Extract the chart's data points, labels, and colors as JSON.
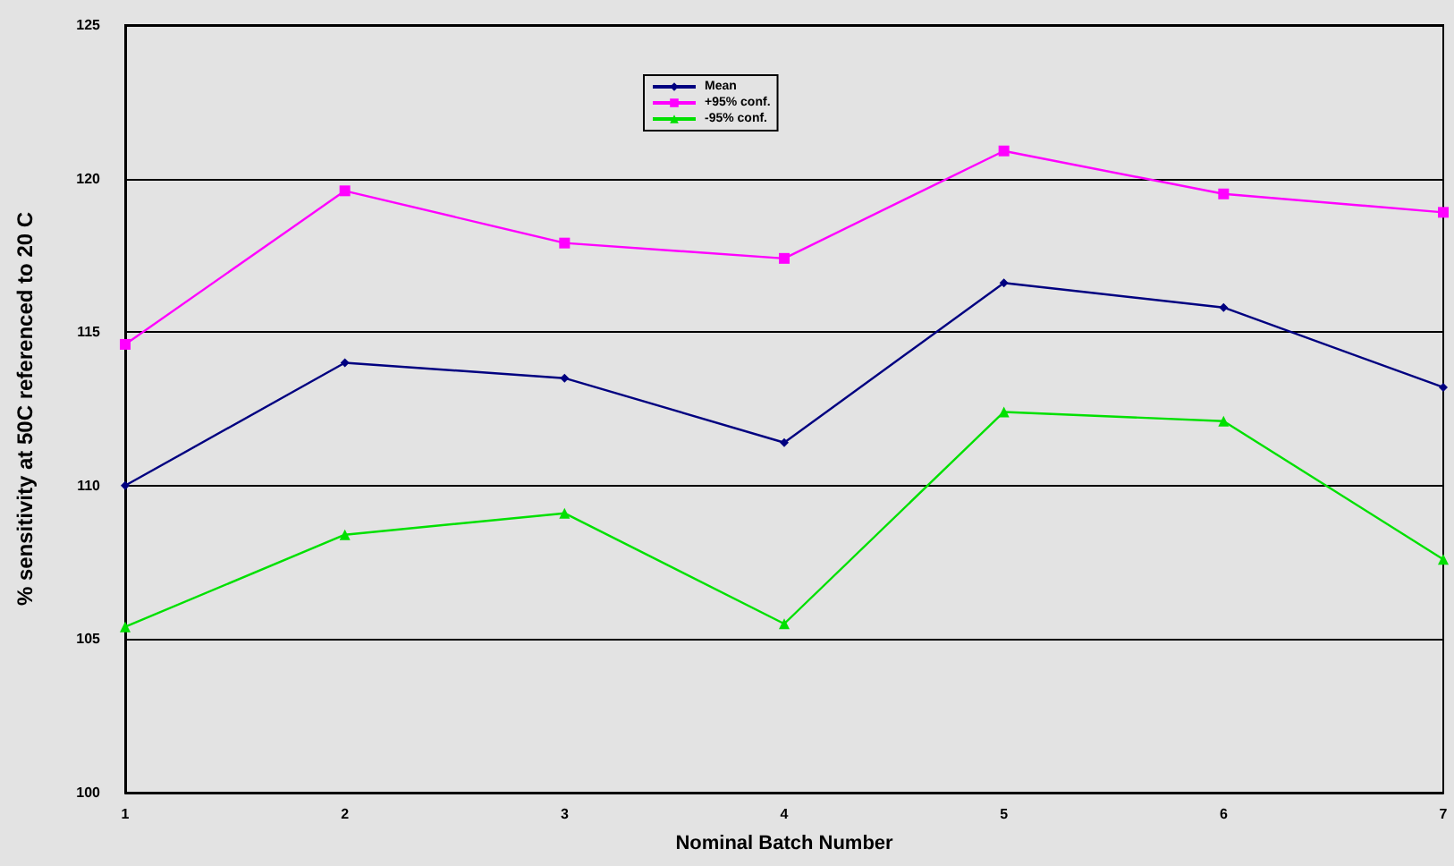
{
  "chart_data": {
    "type": "line",
    "xlabel": "Nominal Batch Number",
    "ylabel": "% sensitivity at 50C referenced to 20 C",
    "categories": [
      "1",
      "2",
      "3",
      "4",
      "5",
      "6",
      "7"
    ],
    "series": [
      {
        "name": "Mean",
        "color": "#000080",
        "marker": "diamond",
        "values": [
          110.0,
          114.0,
          113.5,
          111.4,
          116.6,
          115.8,
          113.2
        ]
      },
      {
        "name": "+95% conf.",
        "color": "#ff00ff",
        "marker": "square",
        "values": [
          114.6,
          119.6,
          117.9,
          117.4,
          120.9,
          119.5,
          118.9
        ]
      },
      {
        "name": "-95% conf.",
        "color": "#00e000",
        "marker": "triangle",
        "values": [
          105.4,
          108.4,
          109.1,
          105.5,
          112.4,
          112.1,
          107.6
        ]
      }
    ],
    "ylim": [
      100,
      125
    ],
    "yticks": [
      100,
      105,
      110,
      115,
      120,
      125
    ],
    "grid": "y",
    "legend": "top",
    "line_style": "solid"
  }
}
